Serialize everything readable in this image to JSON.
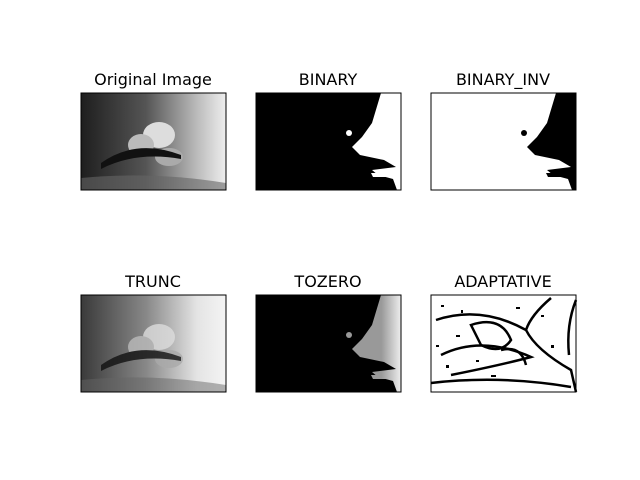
{
  "panels": [
    {
      "title": "Original Image"
    },
    {
      "title": "BINARY"
    },
    {
      "title": "BINARY_INV"
    },
    {
      "title": "TRUNC"
    },
    {
      "title": "TOZERO"
    },
    {
      "title": "ADAPTATIVE"
    }
  ]
}
